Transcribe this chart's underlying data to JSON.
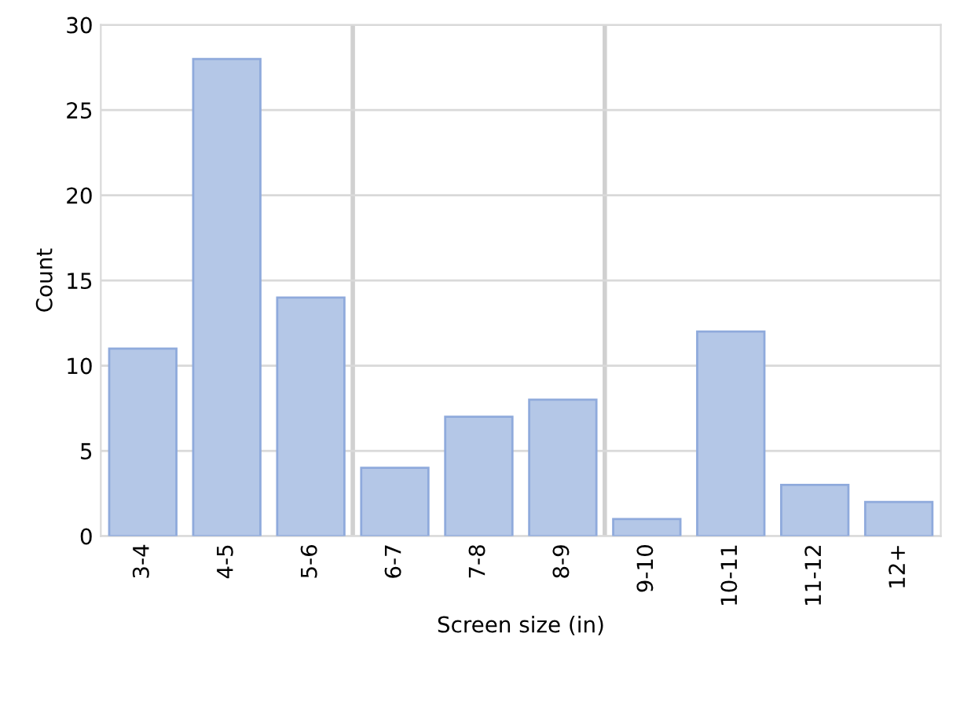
{
  "chart_data": {
    "type": "bar",
    "xlabel": "Screen size (in)",
    "ylabel": "Count",
    "categories": [
      "3-4",
      "4-5",
      "5-6",
      "6-7",
      "7-8",
      "8-9",
      "9-10",
      "10-11",
      "11-12",
      "12+"
    ],
    "values": [
      11,
      28,
      14,
      4,
      7,
      8,
      1,
      12,
      3,
      2
    ],
    "color": "#b4c7e7",
    "ylim": [
      0,
      30
    ],
    "yticks": [
      0,
      5,
      10,
      15,
      20,
      25,
      30
    ],
    "grid": "y"
  }
}
